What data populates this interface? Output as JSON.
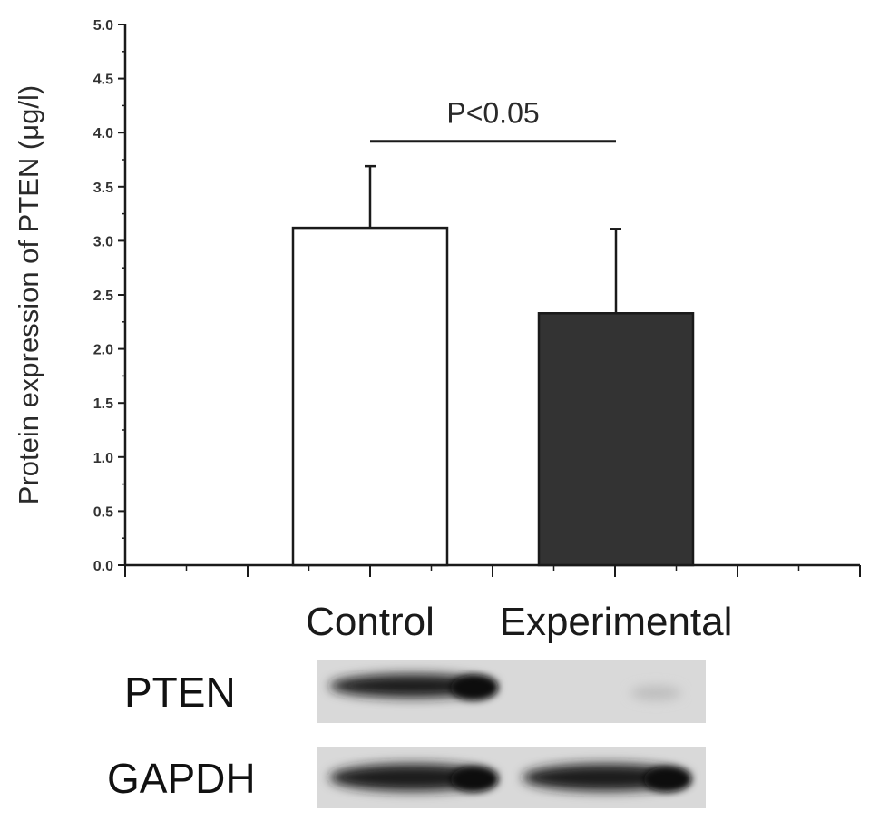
{
  "chart_data": {
    "type": "bar",
    "title": "",
    "xlabel": "",
    "ylabel": "Protein expression of PTEN (μg/l)",
    "ylim": [
      0,
      5.0
    ],
    "yticks": [
      "0.0",
      "0.5",
      "1.0",
      "1.5",
      "2.0",
      "2.5",
      "3.0",
      "3.5",
      "4.0",
      "4.5",
      "5.0"
    ],
    "grid": false,
    "categories": [
      "Control",
      "Experimental"
    ],
    "values": [
      3.12,
      2.33
    ],
    "errors": [
      0.57,
      0.78
    ],
    "bar_colors": [
      "#ffffff",
      "#333333"
    ],
    "significance": {
      "label": "P<0.05",
      "y": 3.92,
      "between": [
        "Control",
        "Experimental"
      ]
    }
  },
  "blots": [
    {
      "label": "PTEN",
      "bands": [
        "strong",
        "faint"
      ]
    },
    {
      "label": "GAPDH",
      "bands": [
        "strong",
        "strong"
      ]
    }
  ]
}
